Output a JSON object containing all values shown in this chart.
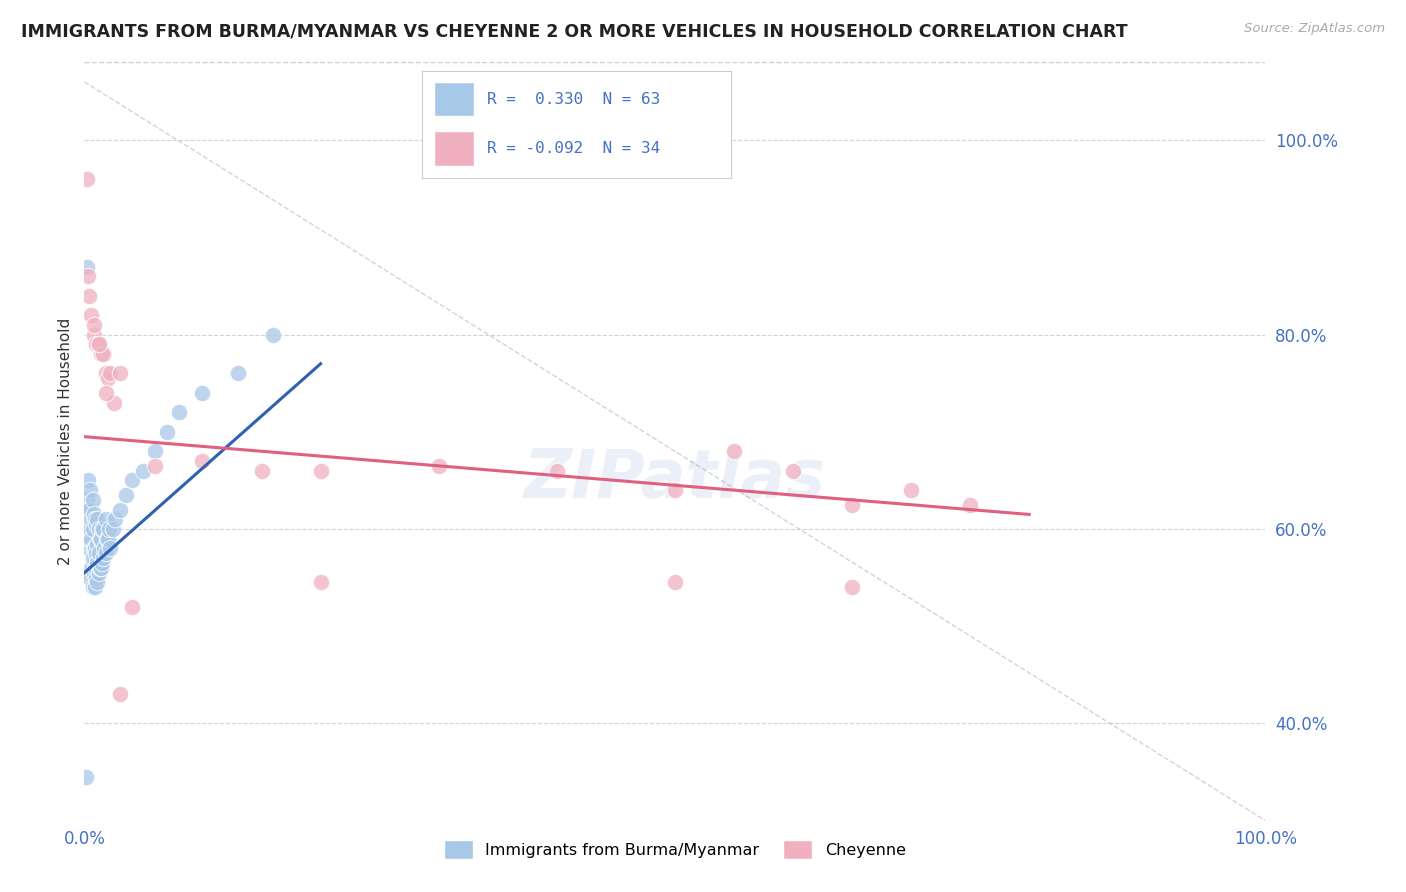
{
  "title": "IMMIGRANTS FROM BURMA/MYANMAR VS CHEYENNE 2 OR MORE VEHICLES IN HOUSEHOLD CORRELATION CHART",
  "source": "Source: ZipAtlas.com",
  "ylabel": "2 or more Vehicles in Household",
  "xlim": [
    0.0,
    1.0
  ],
  "ylim": [
    0.3,
    1.08
  ],
  "yticks": [
    0.4,
    0.6,
    0.8,
    1.0
  ],
  "ytick_labels": [
    "40.0%",
    "60.0%",
    "80.0%",
    "100.0%"
  ],
  "legend_R1": " 0.330",
  "legend_N1": "63",
  "legend_R2": "-0.092",
  "legend_N2": "34",
  "color_blue": "#a8c8e8",
  "color_pink": "#f0b0c0",
  "color_blue_line": "#3060b0",
  "color_pink_line": "#e06080",
  "color_diag": "#b0b8c8",
  "watermark": "ZIPatlas",
  "blue_scatter_x": [
    0.001,
    0.002,
    0.002,
    0.003,
    0.003,
    0.003,
    0.004,
    0.004,
    0.005,
    0.005,
    0.005,
    0.006,
    0.006,
    0.006,
    0.007,
    0.007,
    0.007,
    0.007,
    0.008,
    0.008,
    0.008,
    0.009,
    0.009,
    0.009,
    0.009,
    0.01,
    0.01,
    0.01,
    0.011,
    0.011,
    0.011,
    0.011,
    0.012,
    0.012,
    0.012,
    0.013,
    0.013,
    0.014,
    0.014,
    0.015,
    0.015,
    0.016,
    0.016,
    0.017,
    0.018,
    0.018,
    0.019,
    0.02,
    0.021,
    0.022,
    0.024,
    0.026,
    0.03,
    0.035,
    0.04,
    0.05,
    0.06,
    0.07,
    0.08,
    0.1,
    0.13,
    0.16,
    0.002
  ],
  "blue_scatter_y": [
    0.345,
    0.6,
    0.63,
    0.58,
    0.62,
    0.65,
    0.59,
    0.62,
    0.55,
    0.6,
    0.64,
    0.56,
    0.59,
    0.61,
    0.54,
    0.57,
    0.6,
    0.63,
    0.555,
    0.58,
    0.615,
    0.54,
    0.56,
    0.58,
    0.61,
    0.55,
    0.575,
    0.605,
    0.545,
    0.565,
    0.585,
    0.61,
    0.555,
    0.575,
    0.6,
    0.56,
    0.59,
    0.56,
    0.59,
    0.565,
    0.6,
    0.57,
    0.6,
    0.58,
    0.575,
    0.61,
    0.59,
    0.59,
    0.6,
    0.58,
    0.6,
    0.61,
    0.62,
    0.635,
    0.65,
    0.66,
    0.68,
    0.7,
    0.72,
    0.74,
    0.76,
    0.8,
    0.87
  ],
  "pink_scatter_x": [
    0.002,
    0.004,
    0.006,
    0.008,
    0.01,
    0.012,
    0.014,
    0.016,
    0.018,
    0.02,
    0.025,
    0.03,
    0.04,
    0.06,
    0.1,
    0.15,
    0.2,
    0.3,
    0.4,
    0.5,
    0.55,
    0.6,
    0.65,
    0.7,
    0.75,
    0.008,
    0.012,
    0.018,
    0.022,
    0.03,
    0.2,
    0.5,
    0.65,
    0.003
  ],
  "pink_scatter_y": [
    0.96,
    0.84,
    0.82,
    0.8,
    0.79,
    0.79,
    0.78,
    0.78,
    0.76,
    0.755,
    0.73,
    0.43,
    0.52,
    0.665,
    0.67,
    0.66,
    0.66,
    0.665,
    0.66,
    0.64,
    0.68,
    0.66,
    0.625,
    0.64,
    0.625,
    0.81,
    0.79,
    0.74,
    0.76,
    0.76,
    0.545,
    0.545,
    0.54,
    0.86
  ],
  "blue_line_x": [
    0.0,
    0.2
  ],
  "blue_line_y_start": 0.555,
  "blue_line_y_end": 0.77,
  "pink_line_x": [
    0.0,
    0.8
  ],
  "pink_line_y_start": 0.695,
  "pink_line_y_end": 0.615
}
